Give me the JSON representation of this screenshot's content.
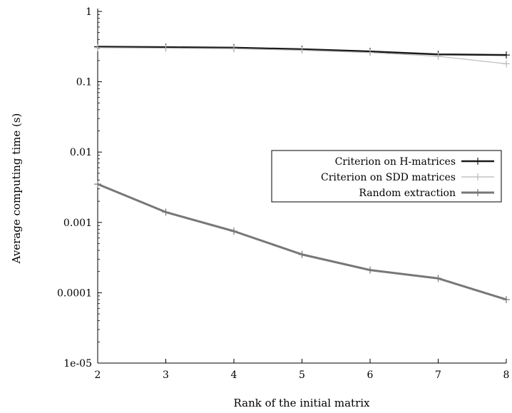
{
  "chart_data": {
    "type": "line",
    "title": "",
    "xlabel": "Rank of the initial matrix",
    "ylabel": "Average computing time (s)",
    "x": [
      2,
      3,
      4,
      5,
      6,
      7,
      8
    ],
    "xlim": [
      2,
      8
    ],
    "ylim": [
      1e-05,
      1
    ],
    "yscale": "log",
    "x_ticks": [
      "2",
      "3",
      "4",
      "5",
      "6",
      "7",
      "8"
    ],
    "y_ticks": [
      {
        "value": 1,
        "label": "1"
      },
      {
        "value": 0.1,
        "label": "0.1"
      },
      {
        "value": 0.01,
        "label": "0.01"
      },
      {
        "value": 0.001,
        "label": "0.001"
      },
      {
        "value": 0.0001,
        "label": "0.0001"
      },
      {
        "value": 1e-05,
        "label": "1e-05"
      }
    ],
    "grid": false,
    "legend_position": "right",
    "series": [
      {
        "name": "Criterion on H-matrices",
        "color": "#1a1a1a",
        "width": 2.5,
        "values": [
          0.315,
          0.31,
          0.305,
          0.29,
          0.27,
          0.245,
          0.24
        ]
      },
      {
        "name": "Criterion on SDD matrices",
        "color": "#b8b8b8",
        "width": 1.2,
        "values": [
          0.305,
          0.3,
          0.295,
          0.28,
          0.26,
          0.23,
          0.18
        ]
      },
      {
        "name": "Random extraction",
        "color": "#777777",
        "width": 3,
        "values": [
          0.0035,
          0.0014,
          0.00075,
          0.00035,
          0.00021,
          0.00016,
          8e-05
        ]
      }
    ]
  }
}
